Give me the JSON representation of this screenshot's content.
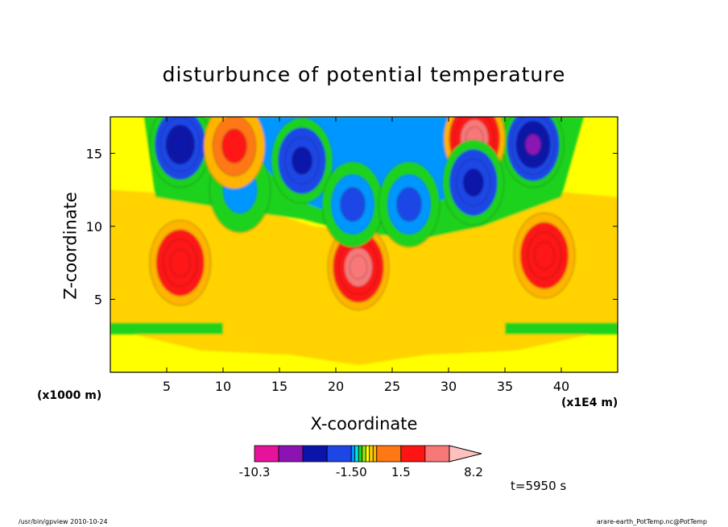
{
  "chart_data": {
    "type": "heatmap",
    "title": "disturbunce of potential temperature",
    "xlabel": "X-coordinate",
    "ylabel": "Z-coordinate",
    "x_scale_note": "(x1E4 m)",
    "y_scale_note": "(x1000 m)",
    "xlim": [
      0,
      45
    ],
    "ylim": [
      0,
      17.5
    ],
    "x_ticks": [
      5,
      10,
      15,
      20,
      25,
      30,
      35,
      40
    ],
    "y_ticks": [
      5,
      10,
      15
    ],
    "grid": false,
    "colorbar": {
      "levels": [
        -10.3,
        -7.9,
        -5.5,
        -3.1,
        -1.5,
        -1.1,
        -0.7,
        -0.3,
        0.1,
        0.5,
        0.9,
        1.3,
        1.5,
        3.1,
        5.5,
        8.2
      ],
      "labels": [
        "-10.3",
        "-1.50",
        "1.5",
        "8.2"
      ],
      "label_values": [
        -10.3,
        -1.5,
        1.5,
        8.2
      ],
      "colors": [
        "#e6129a",
        "#8c12b4",
        "#0a14aa",
        "#1e46e6",
        "#0096ff",
        "#00e6e6",
        "#1ed21e",
        "#96e61e",
        "#ffff00",
        "#ffd200",
        "#ffb400",
        "#ff7814",
        "#ff1414",
        "#f87878",
        "#ffc0c0"
      ],
      "extend": "max"
    },
    "features": [
      {
        "x": 6.2,
        "z": 7.5,
        "value": 3.0
      },
      {
        "x": 38.5,
        "z": 8.0,
        "value": 3.0
      },
      {
        "x": 22.0,
        "z": 7.2,
        "value": 5.0
      },
      {
        "x": 6.2,
        "z": 15.6,
        "value": -5.0
      },
      {
        "x": 37.5,
        "z": 15.6,
        "value": -6.0
      },
      {
        "x": 17.0,
        "z": 14.5,
        "value": -4.0
      },
      {
        "x": 21.5,
        "z": 11.5,
        "value": -2.5
      },
      {
        "x": 26.5,
        "z": 11.5,
        "value": -2.0
      },
      {
        "x": 32.3,
        "z": 16.0,
        "value": 5.0
      },
      {
        "x": 32.2,
        "z": 13.0,
        "value": -4.0
      },
      {
        "x": 11.5,
        "z": 12.5,
        "value": -1.2
      },
      {
        "x": 11.0,
        "z": 15.5,
        "value": 2.0
      }
    ]
  },
  "annotation": {
    "time": "t=5950 s"
  },
  "footer": {
    "left": "/usr/bin/gpview   2010-10-24",
    "right": "arare-earth_PotTemp.nc@PotTemp"
  }
}
